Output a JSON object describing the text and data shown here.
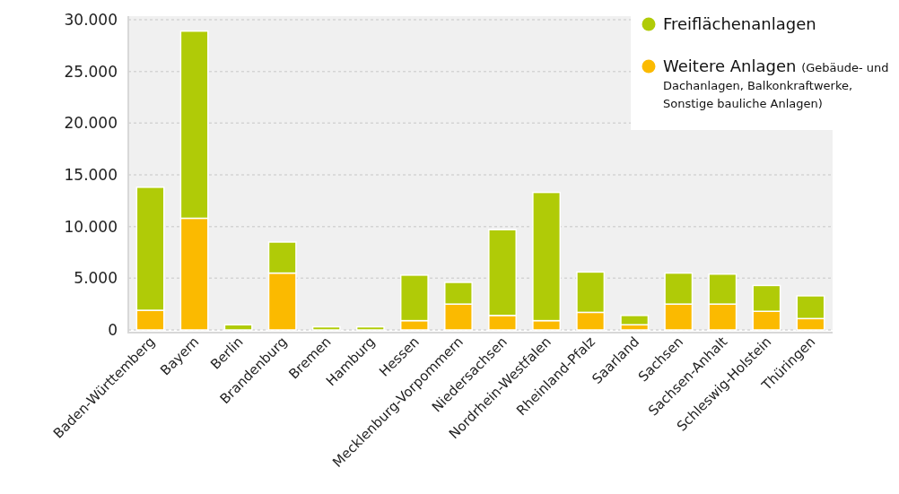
{
  "chart_data": {
    "type": "bar",
    "stacked": true,
    "categories": [
      "Baden-Württemberg",
      "Bayern",
      "Berlin",
      "Brandenburg",
      "Bremen",
      "Hamburg",
      "Hessen",
      "Mecklenburg-Vorpommern",
      "Niedersachsen",
      "Nordrhein-Westfalen",
      "Rheinland-Pfalz",
      "Saarland",
      "Sachsen",
      "Sachsen-Anhalt",
      "Schleswig-Holstein",
      "Thüringen"
    ],
    "series": [
      {
        "name": "Weitere Anlagen (Gebäude- und Dachanlagen, Balkonkraftwerke, Sonstige bauliche Anlagen)",
        "color": "#fbba00",
        "values": [
          1900,
          10800,
          0,
          5500,
          0,
          0,
          900,
          2500,
          1400,
          900,
          1700,
          500,
          2500,
          2500,
          1800,
          1100
        ]
      },
      {
        "name": "Freiflächenanlagen",
        "color": "#b0cb07",
        "values": [
          11900,
          18100,
          500,
          3000,
          300,
          300,
          4400,
          2100,
          8300,
          12400,
          3900,
          900,
          3000,
          2900,
          2500,
          2200
        ]
      }
    ],
    "ylim": [
      0,
      30000
    ],
    "yticks": [
      {
        "value": 0,
        "label": "0"
      },
      {
        "value": 5000,
        "label": "5.000"
      },
      {
        "value": 10000,
        "label": "10.000"
      },
      {
        "value": 15000,
        "label": "15.000"
      },
      {
        "value": 20000,
        "label": "20.000"
      },
      {
        "value": 25000,
        "label": "25.000"
      },
      {
        "value": 30000,
        "label": "30.000"
      }
    ],
    "grid": "y",
    "legend": "top right"
  }
}
